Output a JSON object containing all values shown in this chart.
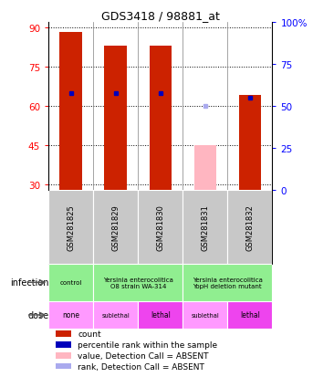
{
  "title": "GDS3418 / 98881_at",
  "samples": [
    "GSM281825",
    "GSM281829",
    "GSM281830",
    "GSM281831",
    "GSM281832"
  ],
  "count_values": [
    88,
    83,
    83,
    null,
    64
  ],
  "count_absent": [
    null,
    null,
    null,
    45,
    null
  ],
  "percentile_values": [
    65,
    65,
    65,
    null,
    63
  ],
  "percentile_absent": [
    null,
    null,
    null,
    60,
    null
  ],
  "ylim_left": [
    28,
    92
  ],
  "ylim_right": [
    0,
    100
  ],
  "left_ticks": [
    30,
    45,
    60,
    75,
    90
  ],
  "right_ticks": [
    0,
    25,
    50,
    75,
    100
  ],
  "bar_color": "#CC2200",
  "bar_absent_color": "#FFB6C1",
  "blue_color": "#0000BB",
  "blue_absent_color": "#AAAAEE",
  "bar_width": 0.5,
  "bg_color": "#FFFFFF",
  "infection_data": [
    [
      0,
      1,
      "control",
      "#90EE90"
    ],
    [
      1,
      3,
      "Yersinia enterocolitica\nO8 strain WA-314",
      "#90EE90"
    ],
    [
      3,
      5,
      "Yersinia enterocolitica\nYopH deletion mutant",
      "#90EE90"
    ]
  ],
  "dose_data": [
    [
      0,
      1,
      "none",
      "#FF99FF"
    ],
    [
      1,
      2,
      "sublethal",
      "#FF99FF"
    ],
    [
      2,
      3,
      "lethal",
      "#EE44EE"
    ],
    [
      3,
      4,
      "sublethal",
      "#FF99FF"
    ],
    [
      4,
      5,
      "lethal",
      "#EE44EE"
    ]
  ],
  "legend_items": [
    [
      "#CC2200",
      "count"
    ],
    [
      "#0000BB",
      "percentile rank within the sample"
    ],
    [
      "#FFB6C1",
      "value, Detection Call = ABSENT"
    ],
    [
      "#AAAAEE",
      "rank, Detection Call = ABSENT"
    ]
  ]
}
